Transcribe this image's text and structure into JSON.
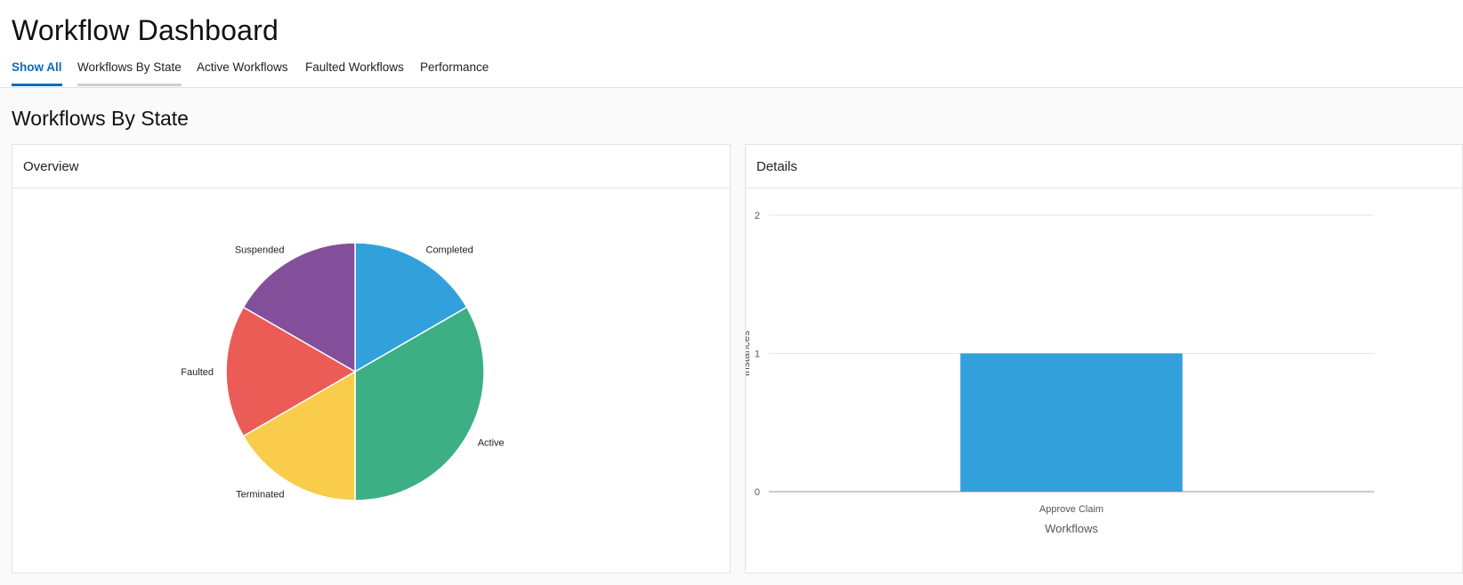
{
  "app": {
    "title": "Workflow Dashboard"
  },
  "tabs": [
    {
      "label": "Show All",
      "state": "active"
    },
    {
      "label": "Workflows By State",
      "state": "hover"
    },
    {
      "label": "Active Workflows",
      "state": "normal"
    },
    {
      "label": "Faulted Workflows",
      "state": "normal"
    },
    {
      "label": "Performance",
      "state": "normal"
    }
  ],
  "section": {
    "title": "Workflows By State"
  },
  "overview": {
    "title": "Overview",
    "chart_data": {
      "type": "pie",
      "title": "",
      "categories": [
        "Completed",
        "Active",
        "Terminated",
        "Faulted",
        "Suspended"
      ],
      "values": [
        1,
        2,
        1,
        1,
        1
      ],
      "colors": [
        "#32a0da",
        "#3caf85",
        "#f9cd4b",
        "#ea5c55",
        "#844f9a"
      ]
    }
  },
  "details": {
    "title": "Details",
    "chart_data": {
      "type": "bar",
      "title": "",
      "categories": [
        "Approve Claim"
      ],
      "values": [
        1
      ],
      "xlabel": "Workflows",
      "ylabel": "Instances",
      "ylim": [
        0,
        2
      ],
      "yticks": [
        0,
        1,
        2
      ],
      "grid": true,
      "color": "#32a0da"
    }
  }
}
